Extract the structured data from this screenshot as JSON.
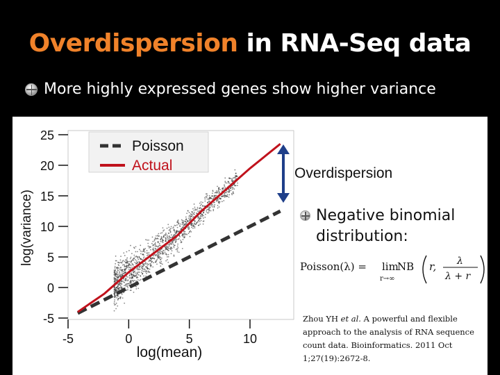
{
  "title": {
    "accent": "Overdispersion",
    "rest": " in RNA-Seq data"
  },
  "bullet1": {
    "icon": "bullet-icon",
    "text": "More highly expressed genes show higher variance"
  },
  "bullet2": {
    "icon": "bullet-icon",
    "line1": "Negative binomial",
    "line2": "distribution:"
  },
  "formula": {
    "lhs": "Poisson(λ) = ",
    "op": "lim",
    "sub": "r→∞",
    "fn": " NB",
    "arg1": "r,",
    "num": "λ",
    "den": "λ + r"
  },
  "citation": {
    "authors": "Zhou YH ",
    "etal": "et al.",
    "text": " A powerful and flexible approach to the analysis of RNA sequence count data. Bioinformatics. 2011 Oct 1;27(19):2672-8."
  },
  "colors": {
    "accent": "#f0822a",
    "actual": "#c0121c",
    "poisson": "#333333",
    "arrow": "#1f3f8a",
    "points": "#222222"
  },
  "chart_data": {
    "type": "scatter",
    "xlabel": "log(mean)",
    "ylabel": "log(variance)",
    "xlim": [
      -5,
      10
    ],
    "ylim": [
      -5,
      25
    ],
    "xticks": [
      -5,
      0,
      5,
      10
    ],
    "yticks": [
      -5,
      0,
      5,
      10,
      15,
      20,
      25
    ],
    "legend_position": "top-center",
    "legend": [
      {
        "name": "Poisson",
        "style": "dashed",
        "color": "#333333"
      },
      {
        "name": "Actual",
        "style": "solid",
        "color": "#c0121c"
      }
    ],
    "series": [
      {
        "name": "Poisson",
        "x": [
          -4.2,
          12.5
        ],
        "y": [
          -4.2,
          12.5
        ]
      },
      {
        "name": "Actual",
        "x": [
          -4.2,
          -2,
          0,
          2,
          4,
          6,
          8,
          10,
          12.5
        ],
        "y": [
          -4.0,
          -1.0,
          2.5,
          5.5,
          8.5,
          12.5,
          16.0,
          19.5,
          23.5
        ]
      }
    ],
    "annotation": {
      "text": "Overdispersion",
      "x": 12.5,
      "y_top": 23.5,
      "y_bottom": 12.5
    }
  }
}
